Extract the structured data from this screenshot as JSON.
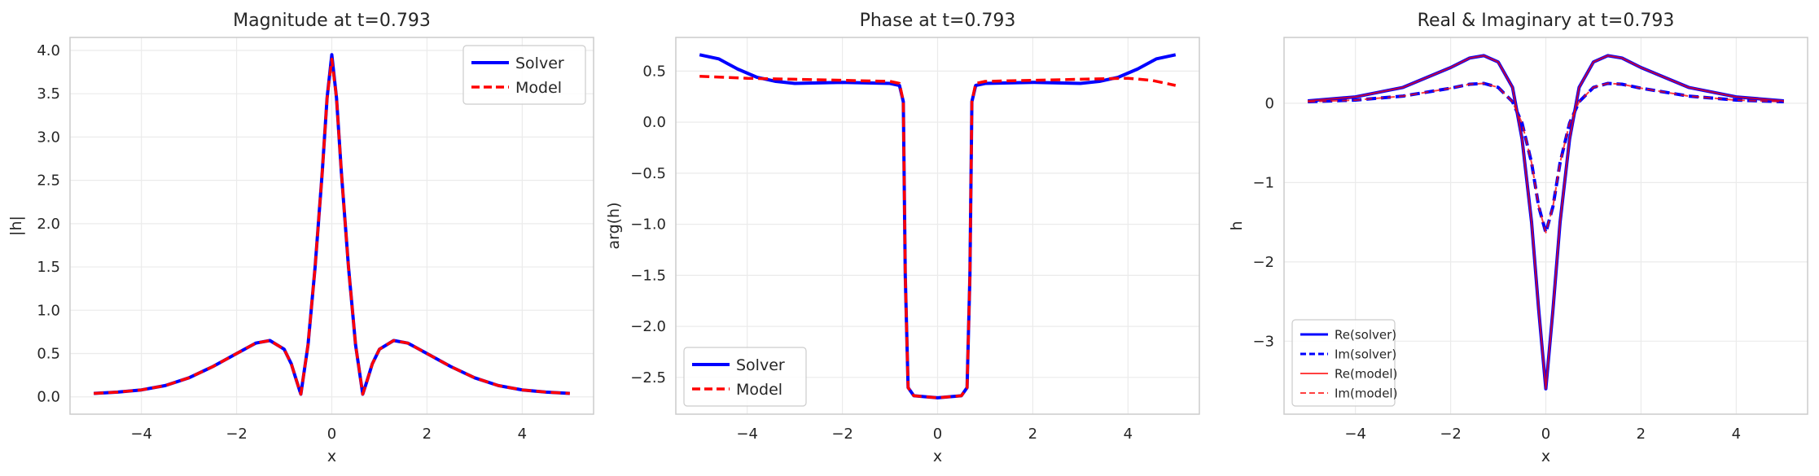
{
  "figure": {
    "colors": {
      "solver": "#0000ff",
      "model": "#ff0000",
      "frame": "#cccccc",
      "grid": "#ebebeb"
    }
  },
  "chart_data": [
    {
      "type": "line",
      "title": "Magnitude at t=0.793",
      "xlabel": "x",
      "ylabel": "|h|",
      "xlim": [
        -5.5,
        5.5
      ],
      "ylim": [
        -0.2,
        4.15
      ],
      "xticks": [
        -4,
        -2,
        0,
        2,
        4
      ],
      "xtick_labels": [
        "−4",
        "−2",
        "0",
        "2",
        "4"
      ],
      "yticks": [
        0.0,
        0.5,
        1.0,
        1.5,
        2.0,
        2.5,
        3.0,
        3.5,
        4.0
      ],
      "ytick_labels": [
        "0.0",
        "0.5",
        "1.0",
        "1.5",
        "2.0",
        "2.5",
        "3.0",
        "3.5",
        "4.0"
      ],
      "grid": true,
      "legend": "upper right",
      "series": [
        {
          "name": "Solver",
          "style": "solid",
          "color": "#0000ff",
          "width": 4,
          "x": [
            -5.0,
            -4.5,
            -4.0,
            -3.5,
            -3.0,
            -2.5,
            -2.0,
            -1.6,
            -1.3,
            -1.0,
            -0.85,
            -0.75,
            -0.65,
            -0.5,
            -0.35,
            -0.2,
            -0.1,
            0.0,
            0.1,
            0.2,
            0.35,
            0.5,
            0.65,
            0.75,
            0.85,
            1.0,
            1.3,
            1.6,
            2.0,
            2.5,
            3.0,
            3.5,
            4.0,
            4.5,
            5.0
          ],
          "y": [
            0.04,
            0.055,
            0.08,
            0.13,
            0.22,
            0.35,
            0.5,
            0.62,
            0.65,
            0.55,
            0.38,
            0.2,
            0.03,
            0.6,
            1.5,
            2.6,
            3.45,
            3.95,
            3.45,
            2.6,
            1.5,
            0.6,
            0.03,
            0.2,
            0.38,
            0.55,
            0.65,
            0.62,
            0.5,
            0.35,
            0.22,
            0.13,
            0.08,
            0.055,
            0.04
          ]
        },
        {
          "name": "Model",
          "style": "dashed",
          "color": "#ff0000",
          "width": 3.5,
          "x": [
            -5.0,
            -4.5,
            -4.0,
            -3.5,
            -3.0,
            -2.5,
            -2.0,
            -1.6,
            -1.3,
            -1.0,
            -0.85,
            -0.75,
            -0.65,
            -0.5,
            -0.35,
            -0.2,
            -0.1,
            0.0,
            0.1,
            0.2,
            0.35,
            0.5,
            0.65,
            0.75,
            0.85,
            1.0,
            1.3,
            1.6,
            2.0,
            2.5,
            3.0,
            3.5,
            4.0,
            4.5,
            5.0
          ],
          "y": [
            0.04,
            0.055,
            0.08,
            0.13,
            0.22,
            0.35,
            0.5,
            0.62,
            0.65,
            0.55,
            0.38,
            0.2,
            0.03,
            0.6,
            1.5,
            2.6,
            3.45,
            3.9,
            3.45,
            2.6,
            1.5,
            0.6,
            0.03,
            0.2,
            0.38,
            0.55,
            0.65,
            0.62,
            0.5,
            0.35,
            0.22,
            0.13,
            0.08,
            0.055,
            0.04
          ]
        }
      ]
    },
    {
      "type": "line",
      "title": "Phase at t=0.793",
      "xlabel": "x",
      "ylabel": "arg(h)",
      "xlim": [
        -5.5,
        5.5
      ],
      "ylim": [
        -2.86,
        0.83
      ],
      "xticks": [
        -4,
        -2,
        0,
        2,
        4
      ],
      "xtick_labels": [
        "−4",
        "−2",
        "0",
        "2",
        "4"
      ],
      "yticks": [
        0.5,
        0.0,
        -0.5,
        -1.0,
        -1.5,
        -2.0,
        -2.5
      ],
      "ytick_labels": [
        "0.5",
        "0.0",
        "−0.5",
        "−1.0",
        "−1.5",
        "−2.0",
        "−2.5"
      ],
      "grid": true,
      "legend": "lower left",
      "series": [
        {
          "name": "Solver",
          "style": "solid",
          "color": "#0000ff",
          "width": 4,
          "x": [
            -5.0,
            -4.6,
            -4.2,
            -3.8,
            -3.4,
            -3.0,
            -2.0,
            -1.0,
            -0.8,
            -0.72,
            -0.68,
            -0.62,
            -0.5,
            0.0,
            0.5,
            0.62,
            0.68,
            0.72,
            0.8,
            1.0,
            2.0,
            3.0,
            3.4,
            3.8,
            4.2,
            4.6,
            5.0
          ],
          "y": [
            0.66,
            0.62,
            0.52,
            0.44,
            0.4,
            0.38,
            0.39,
            0.38,
            0.36,
            0.2,
            -1.5,
            -2.6,
            -2.68,
            -2.7,
            -2.68,
            -2.6,
            -1.5,
            0.2,
            0.36,
            0.38,
            0.39,
            0.38,
            0.4,
            0.44,
            0.52,
            0.62,
            0.66
          ]
        },
        {
          "name": "Model",
          "style": "dashed",
          "color": "#ff0000",
          "width": 3.5,
          "x": [
            -5.0,
            -4.0,
            -3.0,
            -2.0,
            -1.0,
            -0.8,
            -0.72,
            -0.68,
            -0.62,
            -0.5,
            0.0,
            0.5,
            0.62,
            0.68,
            0.72,
            0.8,
            1.0,
            2.0,
            3.0,
            4.0,
            4.5,
            5.0
          ],
          "y": [
            0.45,
            0.43,
            0.42,
            0.41,
            0.4,
            0.38,
            0.2,
            -1.5,
            -2.6,
            -2.68,
            -2.7,
            -2.68,
            -2.6,
            -1.5,
            0.2,
            0.38,
            0.4,
            0.41,
            0.42,
            0.43,
            0.41,
            0.36
          ]
        }
      ]
    },
    {
      "type": "line",
      "title": "Real & Imaginary at t=0.793",
      "xlabel": "x",
      "ylabel": "h",
      "xlim": [
        -5.5,
        5.5
      ],
      "ylim": [
        -3.92,
        0.83
      ],
      "xticks": [
        -4,
        -2,
        0,
        2,
        4
      ],
      "xtick_labels": [
        "−4",
        "−2",
        "0",
        "2",
        "4"
      ],
      "yticks": [
        0,
        -1,
        -2,
        -3
      ],
      "ytick_labels": [
        "0",
        "−1",
        "−2",
        "−3"
      ],
      "grid": true,
      "legend": "lower left",
      "series": [
        {
          "name": "Re(solver)",
          "style": "solid",
          "color": "#0000ff",
          "width": 4,
          "x": [
            -5.0,
            -4.0,
            -3.0,
            -2.0,
            -1.6,
            -1.3,
            -1.0,
            -0.7,
            -0.5,
            -0.3,
            -0.15,
            0.0,
            0.15,
            0.3,
            0.5,
            0.7,
            1.0,
            1.3,
            1.6,
            2.0,
            3.0,
            4.0,
            5.0
          ],
          "y": [
            0.03,
            0.08,
            0.2,
            0.45,
            0.57,
            0.6,
            0.52,
            0.2,
            -0.45,
            -1.5,
            -2.6,
            -3.6,
            -2.6,
            -1.5,
            -0.45,
            0.2,
            0.52,
            0.6,
            0.57,
            0.45,
            0.2,
            0.08,
            0.03
          ]
        },
        {
          "name": "Im(solver)",
          "style": "dashed",
          "color": "#0000ff",
          "width": 4,
          "x": [
            -5.0,
            -4.0,
            -3.0,
            -2.0,
            -1.6,
            -1.3,
            -1.0,
            -0.7,
            -0.5,
            -0.3,
            -0.15,
            0.0,
            0.15,
            0.3,
            0.5,
            0.7,
            1.0,
            1.3,
            1.6,
            2.0,
            3.0,
            4.0,
            5.0
          ],
          "y": [
            0.02,
            0.04,
            0.09,
            0.19,
            0.24,
            0.25,
            0.2,
            0.02,
            -0.25,
            -0.75,
            -1.3,
            -1.63,
            -1.3,
            -0.75,
            -0.25,
            0.02,
            0.2,
            0.25,
            0.24,
            0.19,
            0.09,
            0.04,
            0.02
          ]
        },
        {
          "name": "Re(model)",
          "style": "solid",
          "color": "#ff0000",
          "width": 2,
          "x": [
            -5.0,
            -4.0,
            -3.0,
            -2.0,
            -1.6,
            -1.3,
            -1.0,
            -0.7,
            -0.5,
            -0.3,
            -0.15,
            0.0,
            0.15,
            0.3,
            0.5,
            0.7,
            1.0,
            1.3,
            1.6,
            2.0,
            3.0,
            4.0,
            5.0
          ],
          "y": [
            0.03,
            0.08,
            0.2,
            0.45,
            0.57,
            0.6,
            0.52,
            0.2,
            -0.45,
            -1.5,
            -2.6,
            -3.6,
            -2.6,
            -1.5,
            -0.45,
            0.2,
            0.52,
            0.6,
            0.57,
            0.45,
            0.2,
            0.08,
            0.03
          ]
        },
        {
          "name": "Im(model)",
          "style": "dashed",
          "color": "#ff0000",
          "width": 2,
          "x": [
            -5.0,
            -4.0,
            -3.0,
            -2.0,
            -1.6,
            -1.3,
            -1.0,
            -0.7,
            -0.5,
            -0.3,
            -0.15,
            0.0,
            0.15,
            0.3,
            0.5,
            0.7,
            1.0,
            1.3,
            1.6,
            2.0,
            3.0,
            4.0,
            5.0
          ],
          "y": [
            0.02,
            0.04,
            0.09,
            0.19,
            0.24,
            0.25,
            0.2,
            0.02,
            -0.25,
            -0.75,
            -1.3,
            -1.63,
            -1.3,
            -0.75,
            -0.25,
            0.02,
            0.2,
            0.25,
            0.24,
            0.19,
            0.09,
            0.04,
            0.02
          ]
        }
      ]
    }
  ]
}
